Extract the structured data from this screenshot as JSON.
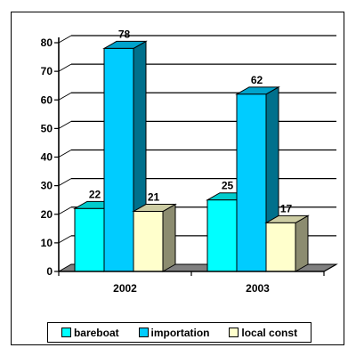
{
  "chart_data": {
    "type": "bar",
    "categories": [
      "2002",
      "2003"
    ],
    "series": [
      {
        "name": "bareboat",
        "values": [
          22,
          25
        ],
        "color": "#00ffff"
      },
      {
        "name": "importation",
        "values": [
          78,
          62
        ],
        "color": "#00ccff"
      },
      {
        "name": "local const",
        "values": [
          21,
          17
        ],
        "color": "#ffffcc"
      }
    ],
    "y_ticks": [
      "0",
      "10",
      "20",
      "30",
      "40",
      "50",
      "60",
      "70",
      "80"
    ],
    "ylim": [
      0,
      80
    ],
    "grid": true,
    "legend_position": "bottom",
    "three_d": true,
    "data_labels": true
  }
}
